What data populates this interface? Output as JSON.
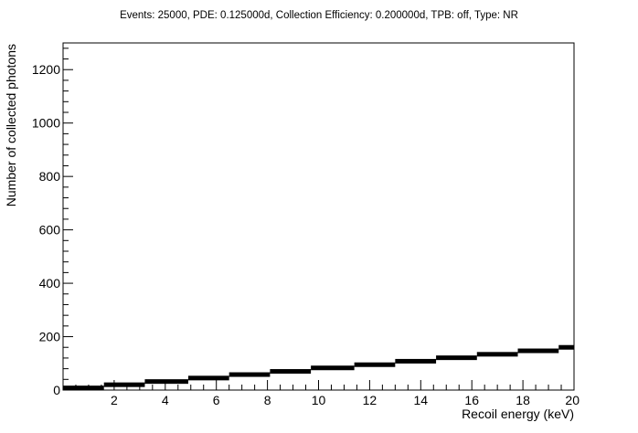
{
  "chart_data": {
    "type": "scatter",
    "title": "Events: 25000, PDE: 0.125000d, Collection Efficiency: 0.200000d, TPB: off, Type: NR",
    "xlabel": "Recoil energy (keV)",
    "ylabel": "Number of collected photons",
    "xlim": [
      0,
      20
    ],
    "ylim": [
      0,
      1300
    ],
    "x_ticks": [
      2,
      4,
      6,
      8,
      10,
      12,
      14,
      16,
      18,
      20
    ],
    "y_ticks": [
      0,
      200,
      400,
      600,
      800,
      1000,
      1200
    ],
    "grid": false,
    "legend": "none",
    "marker_color": "#000000",
    "series": [
      {
        "steps": [
          {
            "x": [
              0.0,
              1.6
            ],
            "y": 8
          },
          {
            "x": [
              1.6,
              3.2
            ],
            "y": 20
          },
          {
            "x": [
              3.2,
              4.9
            ],
            "y": 32
          },
          {
            "x": [
              4.9,
              6.5
            ],
            "y": 45
          },
          {
            "x": [
              6.5,
              8.1
            ],
            "y": 58
          },
          {
            "x": [
              8.1,
              9.7
            ],
            "y": 70
          },
          {
            "x": [
              9.7,
              11.4
            ],
            "y": 83
          },
          {
            "x": [
              11.4,
              13.0
            ],
            "y": 95
          },
          {
            "x": [
              13.0,
              14.6
            ],
            "y": 108
          },
          {
            "x": [
              14.6,
              16.2
            ],
            "y": 121
          },
          {
            "x": [
              16.2,
              17.8
            ],
            "y": 134
          },
          {
            "x": [
              17.8,
              19.4
            ],
            "y": 147
          },
          {
            "x": [
              19.4,
              20.0
            ],
            "y": 160
          }
        ]
      }
    ]
  }
}
